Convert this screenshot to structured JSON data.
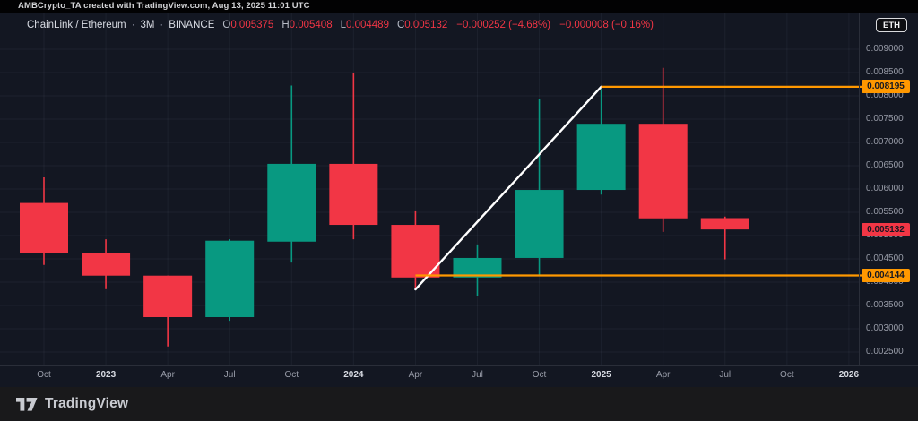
{
  "topbar": {
    "text": "AMBCrypto_TA created with TradingView.com, Aug 13, 2025 11:01 UTC"
  },
  "header": {
    "symbol": "ChainLink / Ethereum",
    "separator": "·",
    "interval": "3M",
    "exchange": "BINANCE",
    "ohlc": [
      {
        "label": "O",
        "value": "0.005375"
      },
      {
        "label": "H",
        "value": "0.005408"
      },
      {
        "label": "L",
        "value": "0.004489"
      },
      {
        "label": "C",
        "value": "0.005132"
      }
    ],
    "change_abs": "−0.000252 (−4.68%)",
    "change_session": "−0.000008 (−0.16%)",
    "value_color": "#f23645"
  },
  "price_scale_button": {
    "label": "ETH"
  },
  "price_axis": {
    "ticks": [
      {
        "label": "0.009000",
        "price": 0.009
      },
      {
        "label": "0.008500",
        "price": 0.0085
      },
      {
        "label": "0.008000",
        "price": 0.008
      },
      {
        "label": "0.007500",
        "price": 0.0075
      },
      {
        "label": "0.007000",
        "price": 0.007
      },
      {
        "label": "0.006500",
        "price": 0.0065
      },
      {
        "label": "0.006000",
        "price": 0.006
      },
      {
        "label": "0.005500",
        "price": 0.0055
      },
      {
        "label": "0.005000",
        "price": 0.005
      },
      {
        "label": "0.004500",
        "price": 0.0045
      },
      {
        "label": "0.004000",
        "price": 0.004
      },
      {
        "label": "0.003500",
        "price": 0.0035
      },
      {
        "label": "0.003000",
        "price": 0.003
      },
      {
        "label": "0.002500",
        "price": 0.0025
      }
    ],
    "tags": [
      {
        "label": "0.008195",
        "price": 0.008195,
        "bg": "#ff9800",
        "fg": "#131722",
        "name": "drawing-level-tag-high"
      },
      {
        "label": "0.005132",
        "price": 0.005132,
        "bg": "#f23645",
        "fg": "#131722",
        "name": "last-price-tag"
      },
      {
        "label": "0.004144",
        "price": 0.004144,
        "bg": "#ff9800",
        "fg": "#131722",
        "name": "drawing-level-tag-low"
      }
    ]
  },
  "time_axis": {
    "labels": [
      {
        "text": "Oct",
        "index": 0,
        "major": false
      },
      {
        "text": "2023",
        "index": 1,
        "major": true
      },
      {
        "text": "Apr",
        "index": 2,
        "major": false
      },
      {
        "text": "Jul",
        "index": 3,
        "major": false
      },
      {
        "text": "Oct",
        "index": 4,
        "major": false
      },
      {
        "text": "2024",
        "index": 5,
        "major": true
      },
      {
        "text": "Apr",
        "index": 6,
        "major": false
      },
      {
        "text": "Jul",
        "index": 7,
        "major": false
      },
      {
        "text": "Oct",
        "index": 8,
        "major": false
      },
      {
        "text": "2025",
        "index": 9,
        "major": true
      },
      {
        "text": "Apr",
        "index": 10,
        "major": false
      },
      {
        "text": "Jul",
        "index": 11,
        "major": false
      },
      {
        "text": "Oct",
        "index": 12,
        "major": false
      },
      {
        "text": "2026",
        "index": 13,
        "major": true
      }
    ]
  },
  "chart_data": {
    "type": "candlestick",
    "symbol": "LINK/ETH",
    "interval": "3M",
    "categories": [
      "Oct 2022",
      "Jan 2023",
      "Apr 2023",
      "Jul 2023",
      "Oct 2023",
      "Jan 2024",
      "Apr 2024",
      "Jul 2024",
      "Oct 2024",
      "Jan 2025",
      "Apr 2025",
      "Jul 2025"
    ],
    "ohlc": [
      {
        "o": 0.0057,
        "h": 0.00625,
        "l": 0.00437,
        "c": 0.00462
      },
      {
        "o": 0.00462,
        "h": 0.00492,
        "l": 0.00385,
        "c": 0.00414
      },
      {
        "o": 0.00414,
        "h": 0.00414,
        "l": 0.00262,
        "c": 0.00325
      },
      {
        "o": 0.00325,
        "h": 0.00492,
        "l": 0.00317,
        "c": 0.00489
      },
      {
        "o": 0.00487,
        "h": 0.00822,
        "l": 0.00442,
        "c": 0.00654
      },
      {
        "o": 0.00654,
        "h": 0.0085,
        "l": 0.00492,
        "c": 0.00523
      },
      {
        "o": 0.00523,
        "h": 0.00554,
        "l": 0.00385,
        "c": 0.0041
      },
      {
        "o": 0.0041,
        "h": 0.00481,
        "l": 0.00371,
        "c": 0.00452
      },
      {
        "o": 0.00452,
        "h": 0.00794,
        "l": 0.00415,
        "c": 0.00598
      },
      {
        "o": 0.00598,
        "h": 0.00815,
        "l": 0.00588,
        "c": 0.0074
      },
      {
        "o": 0.0074,
        "h": 0.0086,
        "l": 0.00508,
        "c": 0.00537
      },
      {
        "o": 0.005375,
        "h": 0.005408,
        "l": 0.004489,
        "c": 0.005132
      }
    ],
    "ylim": [
      0.0025,
      0.009
    ],
    "grid": true,
    "up_color": "#089981",
    "down_color": "#f23645",
    "annotations": [
      {
        "name": "trendline",
        "type": "trendline",
        "from_index": 6,
        "from_price": 0.003846,
        "to_index": 9,
        "to_price": 0.008195,
        "color": "#ffffff",
        "width": 2.4
      },
      {
        "name": "resistance-ray",
        "type": "horizontal_ray",
        "from_index": 9,
        "price": 0.008195,
        "color": "#ff9800",
        "width": 2.2
      },
      {
        "name": "support-ray",
        "type": "horizontal_ray",
        "from_index": 6,
        "price": 0.004144,
        "color": "#ff9800",
        "width": 2.2
      }
    ]
  },
  "branding": {
    "name": "TradingView"
  }
}
